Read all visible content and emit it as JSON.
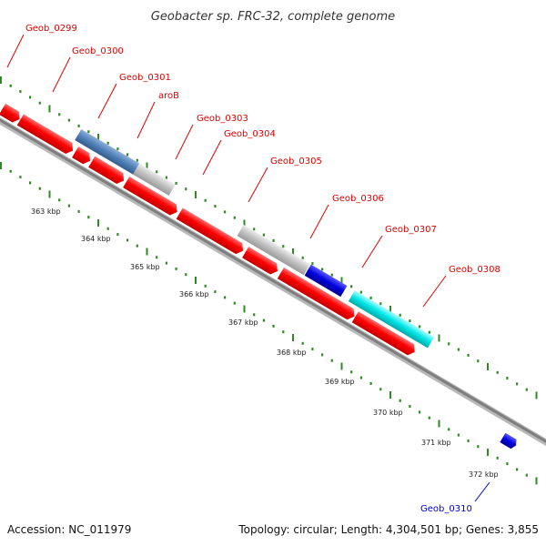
{
  "title": "Geobacter sp. FRC-32, complete genome",
  "footer": {
    "accession": "Accession: NC_011979",
    "summary": "Topology: circular; Length: 4,304,501 bp; Genes: 3,855"
  },
  "colors": {
    "red": "#ff0000",
    "steel": "#4f80b8",
    "gray": "#c0c0c0",
    "blue": "#0000dd",
    "cyan": "#00e5e5",
    "backbone": "#8a8a8a",
    "tick": "#2e8b22",
    "label_red": "#dd0000",
    "label_blue": "#0000cc"
  },
  "genes": [
    {
      "label": "Geob_0299",
      "label_color": "red"
    },
    {
      "label": "Geob_0300",
      "label_color": "red"
    },
    {
      "label": "Geob_0301",
      "label_color": "red"
    },
    {
      "label": "aroB",
      "label_color": "red"
    },
    {
      "label": "Geob_0303",
      "label_color": "red"
    },
    {
      "label": "Geob_0304",
      "label_color": "red"
    },
    {
      "label": "Geob_0305",
      "label_color": "red"
    },
    {
      "label": "Geob_0306",
      "label_color": "red"
    },
    {
      "label": "Geob_0307",
      "label_color": "red"
    },
    {
      "label": "Geob_0308",
      "label_color": "red"
    },
    {
      "label": "Geob_0310",
      "label_color": "blue"
    }
  ],
  "ticks": [
    "363 kbp",
    "364 kbp",
    "365 kbp",
    "366 kbp",
    "367 kbp",
    "368 kbp",
    "369 kbp",
    "370 kbp",
    "371 kbp",
    "372 kbp"
  ]
}
